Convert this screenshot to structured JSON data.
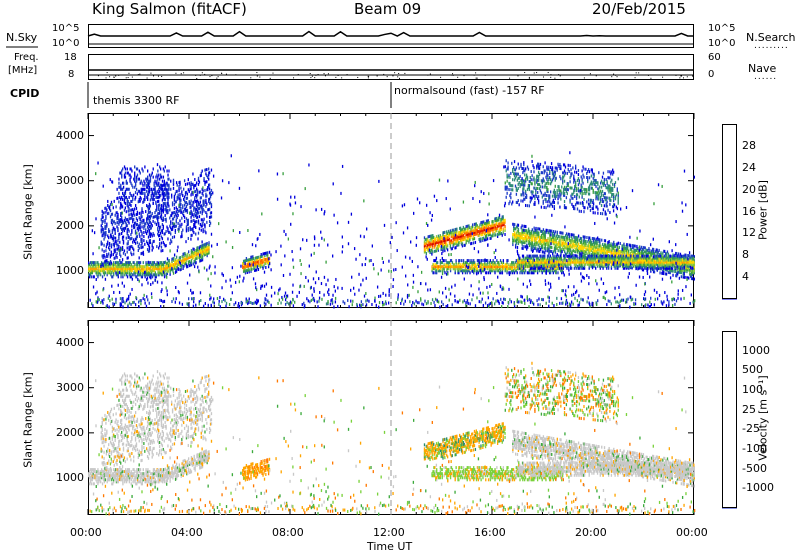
{
  "header": {
    "title": "King Salmon (fitACF)",
    "beam": "Beam 09",
    "date": "20/Feb/2015"
  },
  "info": {
    "nsky_label": "N.Sky",
    "nsky_ticks": [
      "10^5",
      "10^0"
    ],
    "nsearch_label": "N.Search",
    "nsearch_ticks": [
      "10^5",
      "10^0"
    ],
    "freq_label_1": "Freq.",
    "freq_label_2": "[MHz]",
    "freq_ticks": [
      "18",
      "8"
    ],
    "nave_label": "Nave",
    "nave_ticks": [
      "60",
      "0"
    ],
    "cpid_label": "CPID",
    "cpid_1": "themis 3300 RF",
    "cpid_2": "normalsound (fast) -157 RF"
  },
  "chart_data": [
    {
      "type": "heatmap",
      "name": "power",
      "ylabel": "Slant Range [km]",
      "ylim": [
        180,
        4500
      ],
      "yticks": [
        1000,
        2000,
        3000,
        4000
      ],
      "xlabel": "Time UT",
      "xlim": [
        0,
        24
      ],
      "xticks": [
        "00:00",
        "04:00",
        "08:00",
        "12:00",
        "16:00",
        "20:00",
        "00:00"
      ],
      "colorbar": {
        "label": "Power [dB]",
        "ticks": [
          "28",
          "24",
          "20",
          "16",
          "12",
          "8",
          "4"
        ],
        "colors": [
          "#0000dc",
          "#1e3cc8",
          "#2f8c78",
          "#3aa040",
          "#8cc83c",
          "#ffd700",
          "#ffa000",
          "#ff6400",
          "#e61e00",
          "#c80000"
        ]
      }
    },
    {
      "type": "heatmap",
      "name": "velocity",
      "ylabel": "Slant Range [km]",
      "ylim": [
        180,
        4500
      ],
      "yticks": [
        1000,
        2000,
        3000,
        4000
      ],
      "xlabel": "Time UT",
      "xlim": [
        0,
        24
      ],
      "xticks": [
        "00:00",
        "04:00",
        "08:00",
        "12:00",
        "16:00",
        "20:00",
        "00:00"
      ],
      "colorbar": {
        "label": "Velocity [m s⁻¹]",
        "ticks": [
          "1000",
          "500",
          "100",
          "25",
          "-25",
          "-100",
          "-500",
          "-1000"
        ],
        "colors": [
          "#1428c8",
          "#2860c8",
          "#2a8c6e",
          "#3caa3c",
          "#7ad23c",
          "#c8c8c8",
          "#c8c8c8",
          "#ffa500",
          "#ff7800",
          "#ff3c00",
          "#e60000"
        ]
      }
    }
  ]
}
